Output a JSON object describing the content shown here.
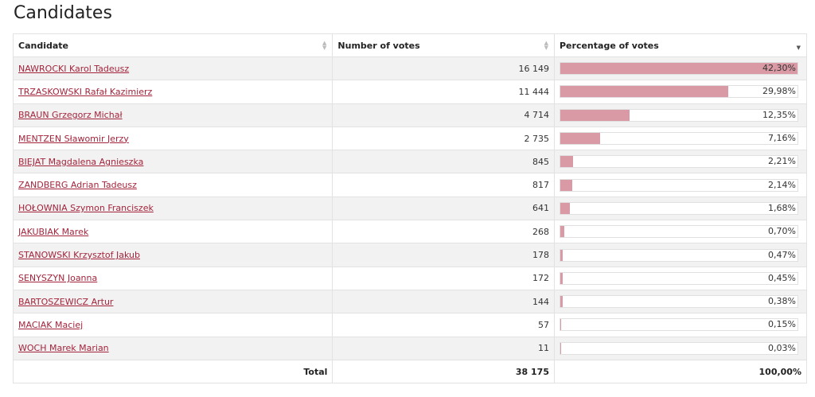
{
  "page": {
    "title": "Candidates"
  },
  "table": {
    "headers": {
      "candidate": "Candidate",
      "votes": "Number of votes",
      "percentage": "Percentage of votes"
    },
    "rows": [
      {
        "name": "NAWROCKI Karol Tadeusz",
        "votes": "16 149",
        "pct_label": "42,30%",
        "pct": 42.3
      },
      {
        "name": "TRZASKOWSKI Rafał Kazimierz",
        "votes": "11 444",
        "pct_label": "29,98%",
        "pct": 29.98
      },
      {
        "name": "BRAUN Grzegorz Michał",
        "votes": "4 714",
        "pct_label": "12,35%",
        "pct": 12.35
      },
      {
        "name": "MENTZEN Sławomir Jerzy",
        "votes": "2 735",
        "pct_label": "7,16%",
        "pct": 7.16
      },
      {
        "name": "BIEJAT Magdalena Agnieszka",
        "votes": "845",
        "pct_label": "2,21%",
        "pct": 2.21
      },
      {
        "name": "ZANDBERG Adrian Tadeusz",
        "votes": "817",
        "pct_label": "2,14%",
        "pct": 2.14
      },
      {
        "name": "HOŁOWNIA Szymon Franciszek",
        "votes": "641",
        "pct_label": "1,68%",
        "pct": 1.68
      },
      {
        "name": "JAKUBIAK Marek",
        "votes": "268",
        "pct_label": "0,70%",
        "pct": 0.7
      },
      {
        "name": "STANOWSKI Krzysztof Jakub",
        "votes": "178",
        "pct_label": "0,47%",
        "pct": 0.47
      },
      {
        "name": "SENYSZYN Joanna",
        "votes": "172",
        "pct_label": "0,45%",
        "pct": 0.45
      },
      {
        "name": "BARTOSZEWICZ Artur",
        "votes": "144",
        "pct_label": "0,38%",
        "pct": 0.38
      },
      {
        "name": "MACIAK Maciej",
        "votes": "57",
        "pct_label": "0,15%",
        "pct": 0.15
      },
      {
        "name": "WOCH Marek Marian",
        "votes": "11",
        "pct_label": "0,03%",
        "pct": 0.03
      }
    ],
    "footer": {
      "label": "Total",
      "votes": "38 175",
      "pct": "100,00%"
    }
  },
  "colors": {
    "link": "#a3243b",
    "bar": "#d99aa5",
    "row_stripe": "#f2f2f2"
  },
  "icons": {
    "sort_inactive": "sort-both-icon",
    "sort_active": "sort-desc-icon"
  }
}
